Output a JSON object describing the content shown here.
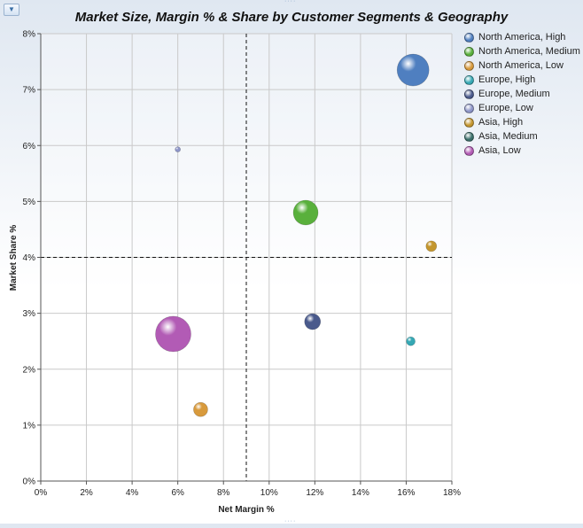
{
  "toolbar": {
    "filter_icon": "filter-icon"
  },
  "chart_data": {
    "type": "bubble",
    "title": "Market Size, Margin % & Share by Customer Segments & Geography",
    "xlabel": "Net Margin %",
    "ylabel": "Market Share %",
    "xlim": [
      0,
      18
    ],
    "ylim": [
      0,
      8
    ],
    "x_ticks": [
      "0%",
      "2%",
      "4%",
      "6%",
      "8%",
      "10%",
      "12%",
      "14%",
      "16%",
      "18%"
    ],
    "y_ticks": [
      "0%",
      "1%",
      "2%",
      "3%",
      "4%",
      "5%",
      "6%",
      "7%",
      "8%"
    ],
    "reference_lines": {
      "x": 9,
      "y": 4
    },
    "grid": true,
    "legend_position": "right",
    "series": [
      {
        "name": "North America, High",
        "x": 16.3,
        "y": 7.35,
        "size": 18,
        "color": "#4f7fc0"
      },
      {
        "name": "North America, Medium",
        "x": 11.6,
        "y": 4.8,
        "size": 14,
        "color": "#59b03c"
      },
      {
        "name": "North America, Low",
        "x": 7.0,
        "y": 1.28,
        "size": 8,
        "color": "#d89a3c"
      },
      {
        "name": "Europe, High",
        "x": 16.2,
        "y": 2.5,
        "size": 5,
        "color": "#35a8b4"
      },
      {
        "name": "Europe, Medium",
        "x": 11.9,
        "y": 2.85,
        "size": 9,
        "color": "#4a5a8c"
      },
      {
        "name": "Europe, Low",
        "x": 6.0,
        "y": 5.93,
        "size": 3,
        "color": "#8d95c8"
      },
      {
        "name": "Asia, High",
        "x": 17.1,
        "y": 4.2,
        "size": 6,
        "color": "#c4962e"
      },
      {
        "name": "Asia, Medium",
        "x": null,
        "y": null,
        "size": 0,
        "color": "#3a6f6a"
      },
      {
        "name": "Asia, Low",
        "x": 5.8,
        "y": 2.63,
        "size": 20,
        "color": "#b25bb5"
      }
    ]
  }
}
